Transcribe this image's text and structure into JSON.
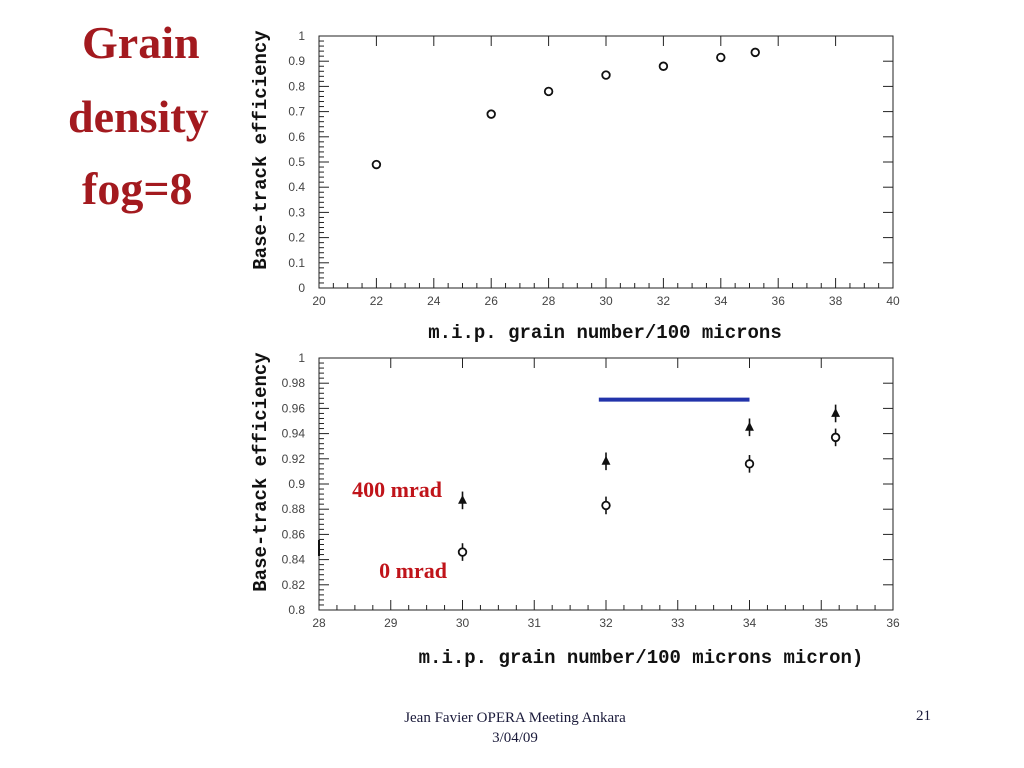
{
  "slide": {
    "title_lines": [
      "Grain",
      "density",
      "fog=8"
    ],
    "footer_text_line1": "Jean Favier  OPERA Meeting Ankara",
    "footer_text_line2": "3/04/09",
    "page_number": "21"
  },
  "colors": {
    "title": "#a31a1f",
    "annotation": "#c0141a",
    "highlight_line": "#2233aa"
  },
  "chart_data": [
    {
      "type": "scatter",
      "title": "",
      "xlabel": "m.i.p. grain number/100 microns",
      "ylabel": "Base-track efficiency",
      "xlim": [
        20,
        40
      ],
      "ylim": [
        0,
        1
      ],
      "xticks": [
        "20",
        "22",
        "24",
        "26",
        "28",
        "30",
        "32",
        "34",
        "36",
        "38",
        "40"
      ],
      "yticks": [
        "0",
        "0.1",
        "0.2",
        "0.3",
        "0.4",
        "0.5",
        "0.6",
        "0.7",
        "0.8",
        "0.9",
        "1"
      ],
      "grid": false,
      "series": [
        {
          "marker": "open-circle",
          "points": [
            [
              22,
              0.49
            ],
            [
              26,
              0.69
            ],
            [
              28,
              0.78
            ],
            [
              30,
              0.845
            ],
            [
              32,
              0.88
            ],
            [
              34,
              0.915
            ],
            [
              35.2,
              0.935
            ]
          ]
        }
      ]
    },
    {
      "type": "scatter",
      "title": "",
      "xlabel": "m.i.p. grain number/100 microns micron)",
      "ylabel": "Base-track efficiency",
      "xlim": [
        28,
        36
      ],
      "ylim": [
        0.8,
        1
      ],
      "xticks": [
        "28",
        "29",
        "30",
        "31",
        "32",
        "33",
        "34",
        "35",
        "36"
      ],
      "yticks": [
        "0.8",
        "0.82",
        "0.84",
        "0.86",
        "0.88",
        "0.9",
        "0.92",
        "0.94",
        "0.96",
        "0.98",
        "1"
      ],
      "grid": false,
      "series": [
        {
          "marker": "filled-triangle",
          "points": [
            [
              30,
              0.887,
              0.007
            ],
            [
              32,
              0.918,
              0.007
            ],
            [
              34,
              0.945,
              0.007
            ],
            [
              35.2,
              0.956,
              0.007
            ]
          ]
        },
        {
          "marker": "open-circle",
          "points": [
            [
              30,
              0.846,
              0.007
            ],
            [
              32,
              0.883,
              0.007
            ],
            [
              34,
              0.916,
              0.007
            ],
            [
              35.2,
              0.937,
              0.007
            ]
          ]
        }
      ],
      "annotations": [
        {
          "text": "400 mrad"
        },
        {
          "text": "0 mrad"
        }
      ],
      "highlight_line": {
        "x_start": 31.9,
        "x_end": 34,
        "y": 0.967
      }
    }
  ]
}
